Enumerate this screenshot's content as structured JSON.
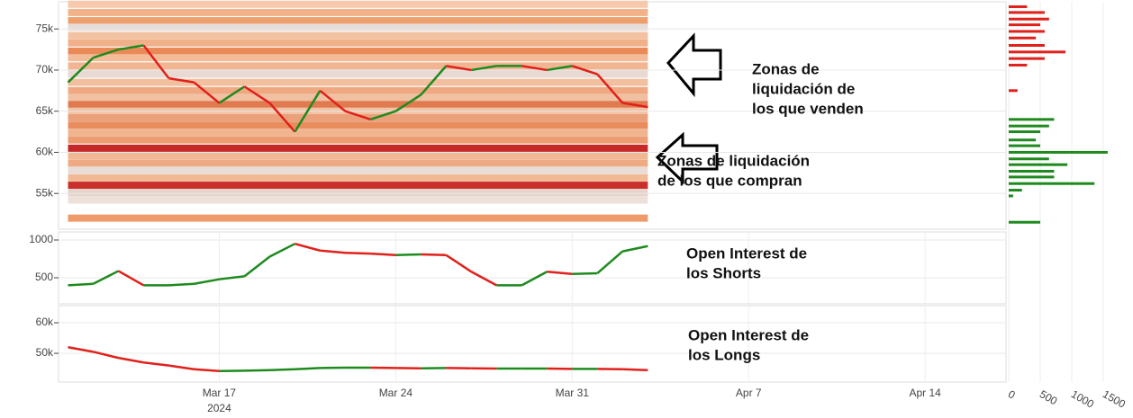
{
  "chart_data": [
    {
      "type": "line",
      "x": [
        "2024-03-11",
        "2024-03-12",
        "2024-03-13",
        "2024-03-14",
        "2024-03-15",
        "2024-03-16",
        "2024-03-17",
        "2024-03-18",
        "2024-03-19",
        "2024-03-20",
        "2024-03-21",
        "2024-03-22",
        "2024-03-23",
        "2024-03-24",
        "2024-03-25",
        "2024-03-26",
        "2024-03-27",
        "2024-03-28",
        "2024-03-29",
        "2024-03-30",
        "2024-03-31",
        "2024-04-01",
        "2024-04-02",
        "2024-04-03"
      ],
      "values": [
        68500,
        71500,
        72500,
        73000,
        69000,
        68500,
        66000,
        68000,
        66000,
        62500,
        67500,
        65000,
        64000,
        65000,
        67000,
        70500,
        70000,
        70500,
        70500,
        70000,
        70500,
        69500,
        66000,
        65500
      ],
      "up_color": "#1e8a1e",
      "down_color": "#e0201a",
      "xlim": [
        "2024-03-10T15:00",
        "2024-04-17T05:00"
      ],
      "xticks": [
        {
          "value": "2024-03-17",
          "label": "Mar 17"
        },
        {
          "value": "2024-03-24",
          "label": "Mar 24"
        },
        {
          "value": "2024-03-31",
          "label": "Mar 31"
        },
        {
          "value": "2024-04-07",
          "label": "Apr 7"
        },
        {
          "value": "2024-04-14",
          "label": "Apr 14"
        }
      ],
      "x_year_label": "2024",
      "ylim": [
        50650,
        78300
      ],
      "yticks": [
        {
          "value": 55000,
          "label": "55k"
        },
        {
          "value": 60000,
          "label": "60k"
        },
        {
          "value": 65000,
          "label": "65k"
        },
        {
          "value": 70000,
          "label": "70k"
        },
        {
          "value": 75000,
          "label": "75k"
        }
      ],
      "heatmap": {
        "levels": [
          78000,
          77000,
          76000,
          75200,
          74200,
          73300,
          72300,
          71500,
          70500,
          69500,
          68500,
          67500,
          66600,
          65800,
          65000,
          64200,
          63300,
          62400,
          61500,
          60500,
          59600,
          58700,
          57800,
          56900,
          56000,
          55100,
          54200,
          52000
        ],
        "colors": [
          "#f6c9ac",
          "#f2b28a",
          "#ee9f6e",
          "#e6ddd8",
          "#f3c2a2",
          "#f0b08a",
          "#ea8a58",
          "#f3bc98",
          "#f1b592",
          "#e8dad2",
          "#f2bf9f",
          "#efa882",
          "#f0c0a2",
          "#e07a50",
          "#f2c3a5",
          "#eaa07a",
          "#e98d5f",
          "#f0b48e",
          "#ec9c72",
          "#c62828",
          "#f0b792",
          "#eeaa82",
          "#e8ddd6",
          "#f1b994",
          "#c9302c",
          "#e5d4ca",
          "#ece0d9",
          "#ef9a6a"
        ]
      },
      "annotations": [
        [
          "Zonas de",
          "liquidación de",
          "los que venden"
        ],
        [
          "Zonas de liquidación",
          "de los que compran"
        ]
      ]
    },
    {
      "type": "line",
      "x": [
        "2024-03-11",
        "2024-03-12",
        "2024-03-13",
        "2024-03-14",
        "2024-03-15",
        "2024-03-16",
        "2024-03-17",
        "2024-03-18",
        "2024-03-19",
        "2024-03-20",
        "2024-03-21",
        "2024-03-22",
        "2024-03-23",
        "2024-03-24",
        "2024-03-25",
        "2024-03-26",
        "2024-03-27",
        "2024-03-28",
        "2024-03-29",
        "2024-03-30",
        "2024-03-31",
        "2024-04-01",
        "2024-04-02",
        "2024-04-03"
      ],
      "values": [
        400,
        420,
        590,
        400,
        400,
        420,
        480,
        520,
        780,
        950,
        860,
        830,
        820,
        800,
        810,
        800,
        580,
        400,
        400,
        580,
        550,
        560,
        850,
        920
      ],
      "up_color": "#1e8a1e",
      "down_color": "#e0201a",
      "ylim": [
        155,
        1107
      ],
      "yticks": [
        500,
        1000
      ],
      "annotations": [
        [
          "Open Interest de",
          "los Shorts"
        ]
      ]
    },
    {
      "type": "line",
      "x": [
        "2024-03-11",
        "2024-03-12",
        "2024-03-13",
        "2024-03-14",
        "2024-03-15",
        "2024-03-16",
        "2024-03-17",
        "2024-03-18",
        "2024-03-19",
        "2024-03-20",
        "2024-03-21",
        "2024-03-22",
        "2024-03-23",
        "2024-03-24",
        "2024-03-25",
        "2024-03-26",
        "2024-03-27",
        "2024-03-28",
        "2024-03-29",
        "2024-03-30",
        "2024-03-31",
        "2024-04-01",
        "2024-04-02",
        "2024-04-03"
      ],
      "values": [
        52000,
        50500,
        48500,
        47000,
        46000,
        44800,
        44200,
        44300,
        44500,
        44800,
        45200,
        45300,
        45300,
        45200,
        45100,
        45200,
        45100,
        45000,
        45000,
        45000,
        44900,
        44900,
        44800,
        44500
      ],
      "up_color": "#1e8a1e",
      "down_color": "#e0201a",
      "ylim": [
        40600,
        65600
      ],
      "yticks": [
        {
          "value": 50000,
          "label": "50k"
        },
        {
          "value": 60000,
          "label": "60k"
        }
      ],
      "annotations": [
        [
          "Open Interest de",
          "los Longs"
        ]
      ]
    },
    {
      "type": "barh",
      "series": [
        {
          "color": "#e0201a",
          "y": [
            77700,
            77000,
            76200,
            75500,
            74700,
            73900,
            73000,
            72200,
            71400,
            70600,
            67500
          ],
          "values": [
            290,
            570,
            640,
            500,
            570,
            430,
            570,
            900,
            570,
            290,
            140
          ]
        },
        {
          "color": "#1e8a1e",
          "y": [
            64000,
            63200,
            62500,
            61500,
            60800,
            60000,
            59200,
            58500,
            57700,
            57000,
            56200,
            55400,
            54700,
            51500
          ],
          "values": [
            720,
            640,
            500,
            430,
            500,
            1570,
            640,
            930,
            720,
            720,
            1360,
            210,
            70,
            500
          ]
        }
      ],
      "xlim": [
        0,
        1714
      ],
      "xticks": [
        0,
        500,
        1000,
        1500
      ],
      "ylim": [
        50650,
        78300
      ]
    }
  ]
}
